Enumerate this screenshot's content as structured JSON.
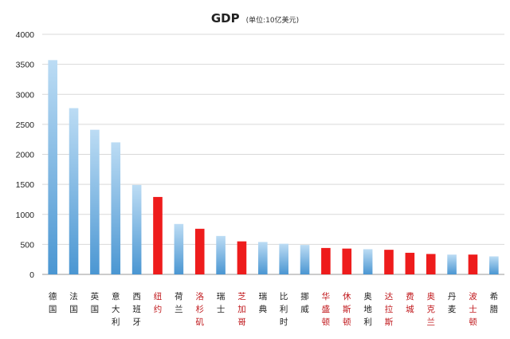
{
  "chart_data": {
    "type": "bar",
    "title": "GDP",
    "subtitle": "(单位:10亿美元)",
    "xlabel": "",
    "ylabel": "",
    "ylim": [
      0,
      4000
    ],
    "yticks": [
      0,
      500,
      1000,
      1500,
      2000,
      2500,
      3000,
      3500,
      4000
    ],
    "grid": true,
    "legend": "none",
    "categories": [
      "德国",
      "法国",
      "英国",
      "意大利",
      "西班牙",
      "纽约",
      "荷兰",
      "洛杉矶",
      "瑞士",
      "芝加哥",
      "瑞典",
      "比利时",
      "挪威",
      "华盛顿",
      "休斯顿",
      "奥地利",
      "达拉斯",
      "费城",
      "奥克兰",
      "丹麦",
      "波士顿",
      "希腊"
    ],
    "values": [
      3570,
      2770,
      2410,
      2200,
      1490,
      1290,
      840,
      760,
      640,
      550,
      540,
      510,
      490,
      440,
      430,
      420,
      410,
      360,
      340,
      330,
      330,
      300
    ],
    "highlight": [
      false,
      false,
      false,
      false,
      false,
      true,
      false,
      true,
      false,
      true,
      false,
      false,
      false,
      true,
      true,
      false,
      true,
      true,
      true,
      false,
      true,
      false
    ],
    "colors": {
      "bar_top": "#bcdcf4",
      "bar_bottom": "#4a96d2",
      "highlight": "#ee1c1c",
      "label_normal": "#222222",
      "label_highlight": "#c0181c",
      "grid": "#d9d9d9",
      "axis": "#999999"
    }
  }
}
